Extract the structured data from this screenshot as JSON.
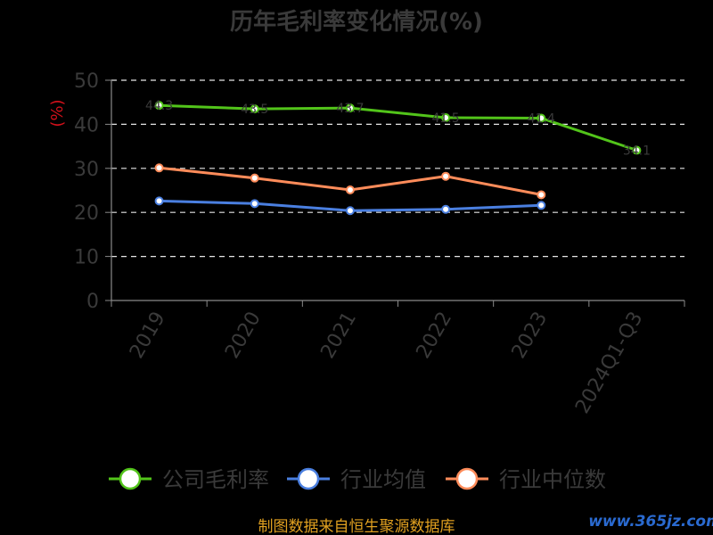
{
  "chart_data": {
    "type": "line",
    "title": "历年毛利率变化情况(%)",
    "ylabel": "(%)",
    "ylim": [
      0,
      50
    ],
    "yticks": [
      0,
      10,
      20,
      30,
      40,
      50
    ],
    "categories": [
      "2019",
      "2020",
      "2021",
      "2022",
      "2023",
      "2024Q1-Q3"
    ],
    "grid": true,
    "legend_position": "bottom",
    "series": [
      {
        "name": "公司毛利率",
        "color": "#52c41a",
        "values": [
          44.3,
          43.5,
          43.7,
          41.5,
          41.4,
          34.1
        ]
      },
      {
        "name": "行业均值",
        "color": "#4a7fe0",
        "values": [
          22.6,
          22.0,
          20.4,
          20.7,
          21.6,
          null
        ]
      },
      {
        "name": "行业中位数",
        "color": "#ff8c5a",
        "values": [
          30.1,
          27.8,
          25.1,
          28.2,
          24.0,
          null
        ]
      }
    ]
  },
  "footer": {
    "source": "制图数据来自恒生聚源数据库",
    "watermark": "www.365jz.com"
  }
}
